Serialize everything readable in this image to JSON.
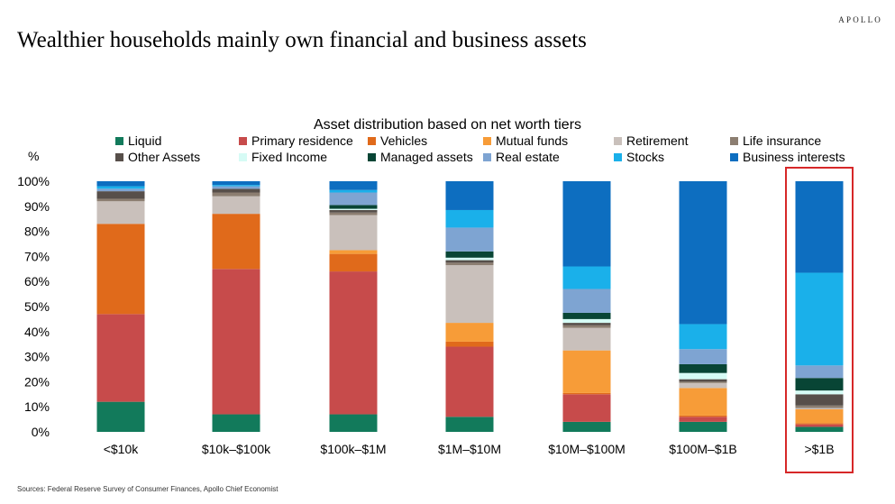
{
  "header": {
    "brand": "APOLLO",
    "title": "Wealthier households mainly own financial and business assets"
  },
  "footer": {
    "source": "Sources: Federal Reserve Survey of Consumer Finances, Apollo Chief Economist"
  },
  "chart_data": {
    "type": "stacked-bar",
    "title": "Asset distribution based on net worth tiers",
    "ylabel": "%",
    "ylim": [
      0,
      100
    ],
    "yticks": [
      "0%",
      "10%",
      "20%",
      "30%",
      "40%",
      "50%",
      "60%",
      "70%",
      "80%",
      "90%",
      "100%"
    ],
    "categories": [
      "<$10k",
      "$10k–$100k",
      "$100k–$1M",
      "$1M–$10M",
      "$10M–$100M",
      "$100M–$1B",
      ">$1B"
    ],
    "highlight_category": ">$1B",
    "highlight_color": "#d62728",
    "series": [
      {
        "name": "Liquid",
        "color": "#127a5b",
        "values": [
          12,
          7,
          7,
          6,
          4,
          4,
          2
        ]
      },
      {
        "name": "Primary residence",
        "color": "#c74b4b",
        "values": [
          35,
          58,
          57,
          28,
          11,
          2,
          1
        ]
      },
      {
        "name": "Vehicles",
        "color": "#e06a1b",
        "values": [
          36,
          22,
          7,
          2,
          0.5,
          0.5,
          0.5
        ]
      },
      {
        "name": "Mutual funds",
        "color": "#f79c38",
        "values": [
          0,
          0,
          1.5,
          7.5,
          17,
          11,
          5.5
        ]
      },
      {
        "name": "Retirement",
        "color": "#c9c0bb",
        "values": [
          9,
          7,
          14,
          23,
          9,
          2,
          0.5
        ]
      },
      {
        "name": "Life insurance",
        "color": "#8c7e71",
        "values": [
          1,
          1.5,
          1,
          1,
          1,
          0.5,
          1
        ]
      },
      {
        "name": "Other Assets",
        "color": "#574f4a",
        "values": [
          3,
          1.5,
          1,
          1,
          1,
          1,
          4.5
        ]
      },
      {
        "name": "Fixed Income",
        "color": "#d6fbf5",
        "values": [
          0,
          0,
          0.5,
          1,
          1.5,
          2.5,
          1.5
        ]
      },
      {
        "name": "Managed assets",
        "color": "#084535",
        "values": [
          0,
          0,
          1.5,
          2.5,
          2.5,
          3.5,
          5
        ]
      },
      {
        "name": "Real estate",
        "color": "#7ea4d2",
        "values": [
          1,
          1,
          5,
          9.5,
          9.5,
          6,
          5
        ]
      },
      {
        "name": "Stocks",
        "color": "#1ab0ea",
        "values": [
          1,
          0.5,
          1,
          7,
          9,
          10,
          37
        ]
      },
      {
        "name": "Business interests",
        "color": "#0d6ec0",
        "values": [
          2,
          1.5,
          3.5,
          11.5,
          34,
          57,
          36.5
        ]
      }
    ]
  }
}
